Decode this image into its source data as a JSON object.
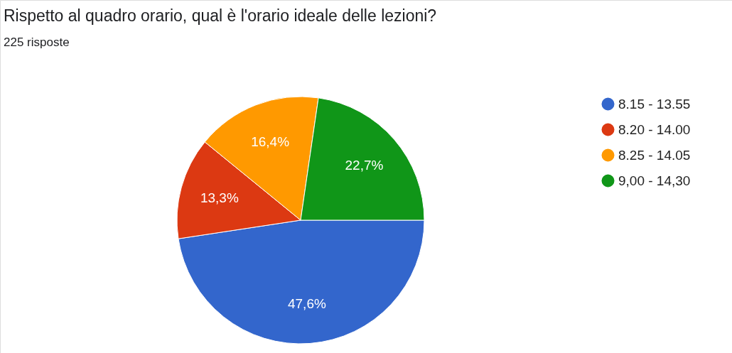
{
  "chart_data": {
    "type": "pie",
    "title": "Rispetto al quadro orario, qual è l'orario ideale delle lezioni?",
    "subtitle": "225 risposte",
    "categories": [
      "8.15 - 13.55",
      "8.20 - 14.00",
      "8.25 - 14.05",
      "9,00 - 14,30"
    ],
    "values": [
      47.6,
      13.3,
      16.4,
      22.7
    ],
    "value_labels": [
      "47,6%",
      "13,3%",
      "16,4%",
      "22,7%"
    ],
    "colors": [
      "#3366cc",
      "#dc3912",
      "#ff9900",
      "#109618"
    ],
    "legend": "right"
  }
}
